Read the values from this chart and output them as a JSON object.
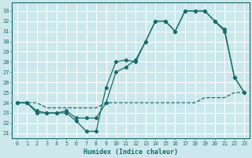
{
  "xlabel": "Humidex (Indice chaleur)",
  "bg_color": "#cce8ec",
  "grid_color": "#ffffff",
  "line_color": "#1a6b6b",
  "xlim": [
    -0.5,
    23.5
  ],
  "ylim": [
    20.5,
    33.8
  ],
  "xticks": [
    0,
    1,
    2,
    3,
    4,
    5,
    6,
    7,
    8,
    9,
    10,
    11,
    12,
    13,
    14,
    15,
    16,
    17,
    18,
    19,
    20,
    21,
    22,
    23
  ],
  "yticks": [
    21,
    22,
    23,
    24,
    25,
    26,
    27,
    28,
    29,
    30,
    31,
    32,
    33
  ],
  "line1_x": [
    0,
    1,
    2,
    3,
    4,
    5,
    6,
    7,
    8,
    9,
    10,
    11,
    12,
    13,
    14,
    15,
    16,
    17,
    18,
    19,
    20,
    21,
    22,
    23
  ],
  "line1_y": [
    24,
    24,
    23,
    23,
    23,
    23,
    22.2,
    21.2,
    21.2,
    25.5,
    28,
    28.2,
    28,
    30,
    32,
    32,
    31,
    33,
    33,
    33,
    32,
    31.2,
    26.5,
    25
  ],
  "line2_x": [
    0,
    1,
    2,
    3,
    4,
    5,
    6,
    7,
    8,
    9,
    10,
    11,
    12,
    13,
    14,
    15,
    16,
    17,
    18,
    19,
    20,
    21,
    22,
    23
  ],
  "line2_y": [
    24,
    24,
    23.2,
    23,
    23,
    23.2,
    22.5,
    22.5,
    22.5,
    24,
    27,
    27.5,
    28.2,
    30,
    32,
    32,
    31,
    33,
    33,
    33,
    32,
    31,
    26.5,
    25
  ],
  "line3_x": [
    0,
    1,
    2,
    3,
    4,
    5,
    6,
    7,
    8,
    9,
    10,
    11,
    12,
    13,
    14,
    15,
    16,
    17,
    18,
    19,
    20,
    21,
    22,
    23
  ],
  "line3_y": [
    24,
    24,
    24,
    23.5,
    23.5,
    23.5,
    23.5,
    23.5,
    23.5,
    24,
    24,
    24,
    24,
    24,
    24,
    24,
    24,
    24,
    24,
    24.5,
    24.5,
    24.5,
    25,
    25
  ]
}
